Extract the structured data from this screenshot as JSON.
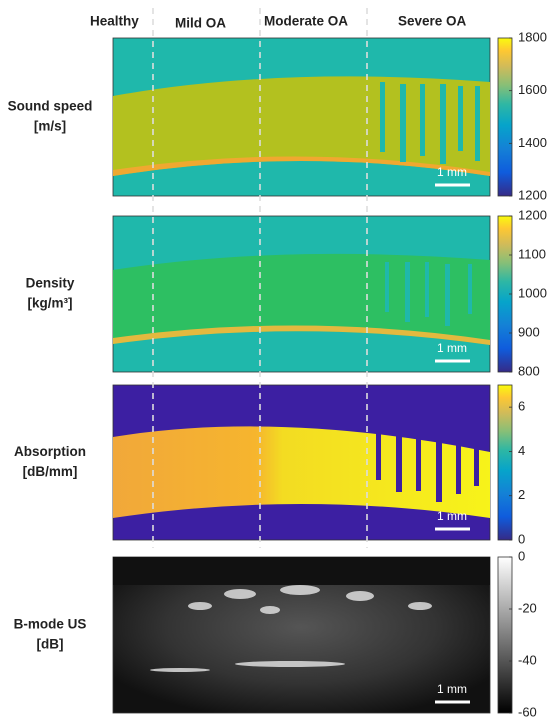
{
  "columns": [
    "Healthy",
    "Mild OA",
    "Moderate OA",
    "Severe OA"
  ],
  "panels": [
    {
      "label": [
        "Sound speed",
        "[m/s]"
      ],
      "scale_bar": "1 mm",
      "colorbar": {
        "range": [
          1200,
          1800
        ],
        "ticks": [
          1200,
          1400,
          1600,
          1800
        ]
      }
    },
    {
      "label": [
        "Density",
        "[kg/m³]"
      ],
      "scale_bar": "1 mm",
      "colorbar": {
        "range": [
          800,
          1200
        ],
        "ticks": [
          800,
          900,
          1000,
          1100,
          1200
        ]
      }
    },
    {
      "label": [
        "Absorption",
        "[dB/mm]"
      ],
      "scale_bar": "1 mm",
      "colorbar": {
        "range": [
          0,
          7
        ],
        "ticks": [
          0,
          2,
          4,
          6
        ]
      }
    },
    {
      "label": [
        "B-mode US",
        "[dB]"
      ],
      "scale_bar": "1 mm",
      "colorbar": {
        "range": [
          -60,
          0
        ],
        "ticks": [
          -60,
          -40,
          -20,
          0
        ]
      }
    }
  ]
}
